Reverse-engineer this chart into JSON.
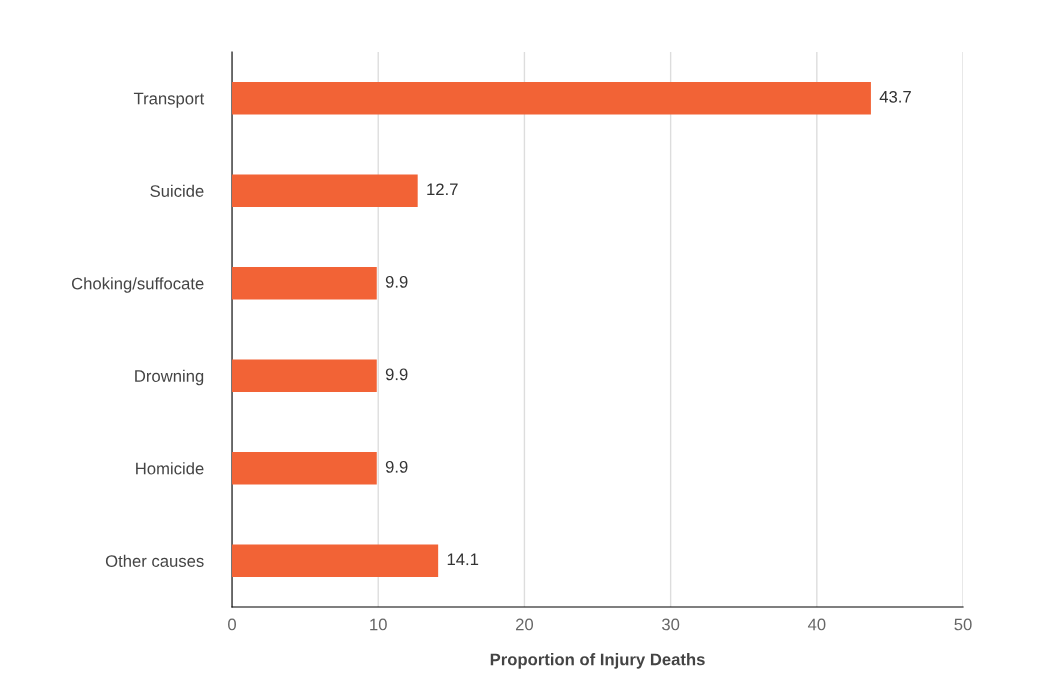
{
  "chart_data": {
    "type": "bar",
    "orientation": "horizontal",
    "xlabel": "Proportion of Injury Deaths",
    "categories": [
      "Transport",
      "Suicide",
      "Choking/suffocate",
      "Drowning",
      "Homicide",
      "Other causes"
    ],
    "values": [
      43.7,
      12.7,
      9.9,
      9.9,
      9.9,
      14.1
    ],
    "color": "#f26336",
    "xlim": [
      0,
      50
    ],
    "xticks": [
      0,
      10,
      20,
      30,
      40,
      50
    ],
    "grid": "x",
    "data_labels": true,
    "legend": false
  }
}
